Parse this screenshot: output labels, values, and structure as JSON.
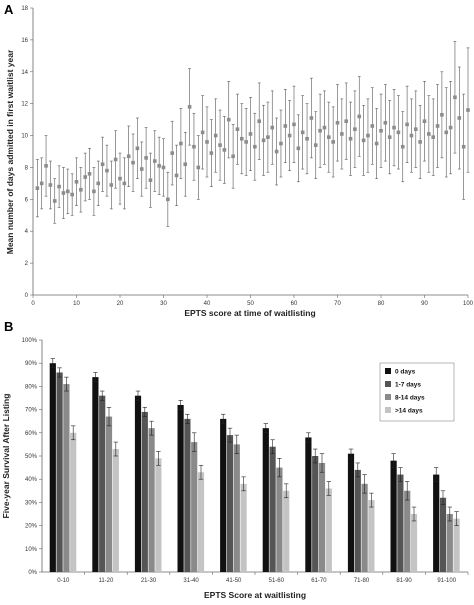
{
  "chart_data": [
    {
      "panel": "A",
      "type": "scatter",
      "xlabel": "EPTS score at time of waitlisting",
      "ylabel": "Mean number of days admitted in first waitlist year",
      "xlim": [
        0,
        100
      ],
      "ylim": [
        0,
        18
      ],
      "x_ticks": [
        0,
        10,
        20,
        30,
        40,
        50,
        60,
        70,
        80,
        90,
        100
      ],
      "y_ticks": [
        0,
        2,
        4,
        6,
        8,
        10,
        12,
        14,
        16,
        18
      ],
      "grid": false,
      "marker_color": "#8c8c8c",
      "error_bar_color": "#555555",
      "x": [
        1,
        2,
        3,
        4,
        5,
        6,
        7,
        8,
        9,
        10,
        11,
        12,
        13,
        14,
        15,
        16,
        17,
        18,
        19,
        20,
        21,
        22,
        23,
        24,
        25,
        26,
        27,
        28,
        29,
        30,
        31,
        32,
        33,
        34,
        35,
        36,
        37,
        38,
        39,
        40,
        41,
        42,
        43,
        44,
        45,
        46,
        47,
        48,
        49,
        50,
        51,
        52,
        53,
        54,
        55,
        56,
        57,
        58,
        59,
        60,
        61,
        62,
        63,
        64,
        65,
        66,
        67,
        68,
        69,
        70,
        71,
        72,
        73,
        74,
        75,
        76,
        77,
        78,
        79,
        80,
        81,
        82,
        83,
        84,
        85,
        86,
        87,
        88,
        89,
        90,
        91,
        92,
        93,
        94,
        95,
        96,
        97,
        98,
        99,
        100
      ],
      "y": [
        6.7,
        7.0,
        8.1,
        6.9,
        5.9,
        6.8,
        6.4,
        6.5,
        6.3,
        7.1,
        6.6,
        7.4,
        7.6,
        6.5,
        7.0,
        8.2,
        7.8,
        6.9,
        8.5,
        7.3,
        7.0,
        8.7,
        8.3,
        9.2,
        7.9,
        8.6,
        7.2,
        8.4,
        8.1,
        8.0,
        6.0,
        8.9,
        7.5,
        9.5,
        8.2,
        11.8,
        9.3,
        8.0,
        10.2,
        9.6,
        8.9,
        10.0,
        9.4,
        9.1,
        11.0,
        8.7,
        10.4,
        9.8,
        9.6,
        10.1,
        9.3,
        10.9,
        9.7,
        9.9,
        10.5,
        9.0,
        9.5,
        10.6,
        10.0,
        10.7,
        9.2,
        10.2,
        9.8,
        11.1,
        9.4,
        10.3,
        10.5,
        9.9,
        9.6,
        10.8,
        10.1,
        10.9,
        9.8,
        10.4,
        11.2,
        9.7,
        10.0,
        10.6,
        9.5,
        10.3,
        10.8,
        9.9,
        10.5,
        10.2,
        9.3,
        10.7,
        10.0,
        10.4,
        9.6,
        10.9,
        10.1,
        9.9,
        10.6,
        11.3,
        10.2,
        10.5,
        12.4,
        11.1,
        9.3,
        11.6
      ],
      "error": [
        1.8,
        1.6,
        1.9,
        1.5,
        1.4,
        1.3,
        1.6,
        1.4,
        1.3,
        1.5,
        1.4,
        1.5,
        1.6,
        1.5,
        1.4,
        1.7,
        1.6,
        1.5,
        1.8,
        1.6,
        1.6,
        1.9,
        1.8,
        1.9,
        1.7,
        1.9,
        1.7,
        1.9,
        1.8,
        1.8,
        1.7,
        2.0,
        1.9,
        2.2,
        2.0,
        2.4,
        2.1,
        2.0,
        2.3,
        2.2,
        2.1,
        2.3,
        2.2,
        2.1,
        2.4,
        2.0,
        2.2,
        2.2,
        2.1,
        2.3,
        2.1,
        2.4,
        2.2,
        2.2,
        2.3,
        2.1,
        2.1,
        2.3,
        2.2,
        2.4,
        2.1,
        2.3,
        2.2,
        2.5,
        2.1,
        2.3,
        2.3,
        2.2,
        2.2,
        2.4,
        2.2,
        2.4,
        2.3,
        2.4,
        2.5,
        2.2,
        2.3,
        2.4,
        2.2,
        2.3,
        2.4,
        2.3,
        2.4,
        2.3,
        2.2,
        2.4,
        2.3,
        2.4,
        2.3,
        2.5,
        2.4,
        2.4,
        2.6,
        2.7,
        2.8,
        2.9,
        3.5,
        3.2,
        3.3,
        3.9
      ]
    },
    {
      "panel": "B",
      "type": "bar",
      "xlabel": "EPTS Score at waitlisting",
      "ylabel": "Five-year Survival After Listing",
      "ylim": [
        0,
        100
      ],
      "y_ticks": [
        "0%",
        "10%",
        "20%",
        "30%",
        "40%",
        "50%",
        "60%",
        "70%",
        "80%",
        "90%",
        "100%"
      ],
      "grid": false,
      "legend_position": "top-right",
      "categories": [
        "0-10",
        "11-20",
        "21-30",
        "31-40",
        "41-50",
        "51-60",
        "61-70",
        "71-80",
        "81-90",
        "91-100"
      ],
      "series": [
        {
          "name": "0 days",
          "color": "#111111",
          "values": [
            90,
            84,
            76,
            72,
            66,
            62,
            58,
            51,
            48,
            42
          ],
          "error": [
            2,
            2,
            2,
            2,
            2,
            2,
            2,
            2,
            3,
            3
          ]
        },
        {
          "name": "1-7 days",
          "color": "#555555",
          "values": [
            86,
            76,
            69,
            66,
            59,
            54,
            50,
            44,
            42,
            32
          ],
          "error": [
            2,
            2,
            2,
            2,
            3,
            3,
            3,
            3,
            3,
            3
          ]
        },
        {
          "name": "8-14 days",
          "color": "#8a8a8a",
          "values": [
            81,
            67,
            62,
            56,
            55,
            45,
            47,
            38,
            35,
            25
          ],
          "error": [
            3,
            4,
            3,
            4,
            4,
            4,
            4,
            4,
            4,
            3
          ]
        },
        {
          "name": ">14 days",
          "color": "#c4c4c4",
          "values": [
            60,
            53,
            49,
            43,
            38,
            35,
            36,
            31,
            25,
            23
          ],
          "error": [
            3,
            3,
            3,
            3,
            3,
            3,
            3,
            3,
            3,
            3
          ]
        }
      ]
    }
  ]
}
